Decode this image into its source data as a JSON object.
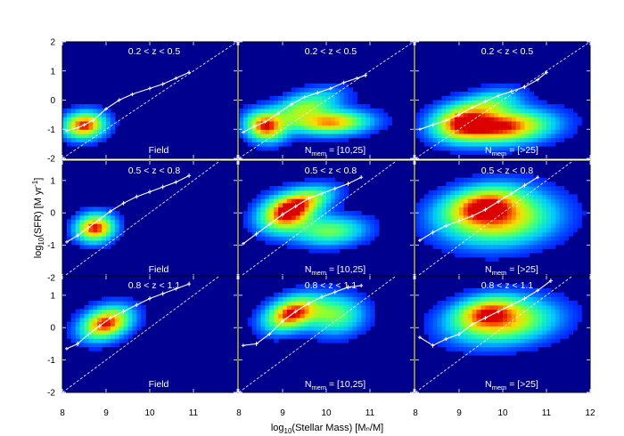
{
  "figure": {
    "xlabel": "log₁₀(Stellar Mass) [Mₙ/M]",
    "ylabel": "log₁₀(SFR) [M yr⁻¹]",
    "xlabel_parts": {
      "pre": "log",
      "sub": "10",
      "post": "(Stellar Mass) [Mₙ/M]"
    },
    "ylabel_parts": {
      "pre": "log",
      "sub": "10",
      "post": "(SFR) [M yr",
      "sup": "-1",
      "end": "]"
    },
    "bottom_ticks": [
      "8",
      "9",
      "10",
      "11",
      "8",
      "9",
      "10",
      "11",
      "8",
      "9",
      "10",
      "11",
      "12"
    ],
    "row_y_ticks": [
      [
        "2",
        "1",
        "0",
        "-1",
        "-2"
      ],
      [
        "1",
        "0",
        "-1",
        "-2"
      ],
      [
        "1",
        "0",
        "-1",
        "-2"
      ]
    ]
  },
  "chart_data": [
    {
      "type": "heatmap",
      "row": 0,
      "col": 0,
      "title": "0.2 < z < 0.5",
      "label": "Field",
      "xlim": [
        8,
        12
      ],
      "ylim": [
        -2,
        2
      ],
      "blobs": [
        {
          "x": 8.5,
          "y": -0.85,
          "sx": 0.33,
          "sy": 0.3,
          "rot": 0.55,
          "w": 1.0
        }
      ],
      "median": {
        "x": [
          8.1,
          8.35,
          8.5,
          8.7,
          9.0,
          9.3,
          9.6,
          10.0,
          10.3,
          10.6,
          10.9
        ],
        "y": [
          -1.05,
          -0.95,
          -0.85,
          -0.7,
          -0.3,
          0.0,
          0.2,
          0.4,
          0.55,
          0.75,
          0.95
        ]
      }
    },
    {
      "type": "heatmap",
      "row": 0,
      "col": 1,
      "title": "0.2 < z < 0.5",
      "label": "N",
      "label_sub": "mem",
      "label_post": " = [10,25]",
      "xlim": [
        8,
        12
      ],
      "ylim": [
        -2,
        2
      ],
      "blobs": [
        {
          "x": 8.6,
          "y": -0.9,
          "sx": 0.3,
          "sy": 0.35,
          "rot": 0.4,
          "w": 0.9
        },
        {
          "x": 10.1,
          "y": -0.75,
          "sx": 0.6,
          "sy": 0.28,
          "rot": 0.05,
          "w": 0.85
        },
        {
          "x": 9.5,
          "y": -0.2,
          "sx": 0.6,
          "sy": 0.3,
          "rot": 0.5,
          "w": 0.55
        }
      ],
      "median": {
        "x": [
          8.1,
          8.35,
          8.6,
          8.9,
          9.2,
          9.5,
          9.8,
          10.1,
          10.4,
          10.7,
          10.9
        ],
        "y": [
          -1.1,
          -0.9,
          -0.75,
          -0.45,
          -0.15,
          0.1,
          0.25,
          0.4,
          0.6,
          0.75,
          0.85
        ]
      }
    },
    {
      "type": "heatmap",
      "row": 0,
      "col": 2,
      "title": "0.2 < z < 0.5",
      "label": "N",
      "label_sub": "mem",
      "label_post": " = [>25]",
      "xlim": [
        8,
        12
      ],
      "ylim": [
        -2,
        2
      ],
      "blobs": [
        {
          "x": 10.0,
          "y": -0.9,
          "sx": 0.75,
          "sy": 0.38,
          "rot": 0.1,
          "w": 1.0
        },
        {
          "x": 9.0,
          "y": -0.75,
          "sx": 0.45,
          "sy": 0.4,
          "rot": 0.4,
          "w": 0.7
        },
        {
          "x": 9.7,
          "y": -0.1,
          "sx": 0.5,
          "sy": 0.3,
          "rot": 0.4,
          "w": 0.45
        }
      ],
      "median": {
        "x": [
          8.1,
          8.4,
          8.7,
          9.0,
          9.3,
          9.6,
          9.9,
          10.2,
          10.5,
          10.8,
          11.0
        ],
        "y": [
          -1.0,
          -0.85,
          -0.7,
          -0.5,
          -0.25,
          -0.05,
          0.15,
          0.3,
          0.45,
          0.7,
          0.95
        ]
      }
    },
    {
      "type": "heatmap",
      "row": 1,
      "col": 0,
      "title": "0.5 < z < 0.8",
      "label": "Field",
      "xlim": [
        8,
        12
      ],
      "ylim": [
        -2,
        1.6
      ],
      "blobs": [
        {
          "x": 8.75,
          "y": -0.45,
          "sx": 0.3,
          "sy": 0.28,
          "rot": 0.6,
          "w": 1.0
        }
      ],
      "median": {
        "x": [
          8.1,
          8.35,
          8.6,
          8.85,
          9.1,
          9.4,
          9.7,
          10.0,
          10.3,
          10.6,
          10.9
        ],
        "y": [
          -0.9,
          -0.7,
          -0.45,
          -0.2,
          0.05,
          0.3,
          0.5,
          0.65,
          0.8,
          0.95,
          1.15
        ]
      }
    },
    {
      "type": "heatmap",
      "row": 1,
      "col": 1,
      "title": "0.5 < z < 0.8",
      "label": "N",
      "label_sub": "mem",
      "label_post": " = [10,25]",
      "xlim": [
        8,
        12
      ],
      "ylim": [
        -2,
        1.6
      ],
      "blobs": [
        {
          "x": 9.1,
          "y": 0.0,
          "sx": 0.45,
          "sy": 0.35,
          "rot": 0.55,
          "w": 1.0
        },
        {
          "x": 10.1,
          "y": -0.55,
          "sx": 0.55,
          "sy": 0.3,
          "rot": 0.1,
          "w": 0.55
        },
        {
          "x": 9.6,
          "y": 0.45,
          "sx": 0.45,
          "sy": 0.25,
          "rot": 0.4,
          "w": 0.5
        }
      ],
      "median": {
        "x": [
          8.1,
          8.4,
          8.7,
          9.0,
          9.3,
          9.6,
          9.9,
          10.2,
          10.5,
          10.8
        ],
        "y": [
          -0.95,
          -0.65,
          -0.35,
          -0.05,
          0.2,
          0.45,
          0.6,
          0.75,
          0.9,
          1.1
        ]
      }
    },
    {
      "type": "heatmap",
      "row": 1,
      "col": 2,
      "title": "0.5 < z < 0.8",
      "label": "N",
      "label_sub": "mem",
      "label_post": " = [>25]",
      "xlim": [
        8,
        12
      ],
      "ylim": [
        -2,
        1.6
      ],
      "blobs": [
        {
          "x": 9.9,
          "y": -0.15,
          "sx": 0.85,
          "sy": 0.55,
          "rot": 0.1,
          "w": 0.85
        },
        {
          "x": 9.5,
          "y": 0.3,
          "sx": 0.6,
          "sy": 0.35,
          "rot": 0.3,
          "w": 0.55
        }
      ],
      "median": {
        "x": [
          8.1,
          8.4,
          8.7,
          9.0,
          9.3,
          9.6,
          9.9,
          10.2,
          10.5,
          10.8
        ],
        "y": [
          -0.85,
          -0.6,
          -0.4,
          -0.25,
          -0.1,
          0.1,
          0.35,
          0.6,
          0.85,
          1.1
        ]
      }
    },
    {
      "type": "heatmap",
      "row": 2,
      "col": 0,
      "title": "0.8 < z < 1.1",
      "label": "Field",
      "xlim": [
        8,
        12
      ],
      "ylim": [
        -2,
        1.6
      ],
      "blobs": [
        {
          "x": 9.0,
          "y": 0.15,
          "sx": 0.42,
          "sy": 0.3,
          "rot": 0.6,
          "w": 1.0
        }
      ],
      "median": {
        "x": [
          8.1,
          8.35,
          8.6,
          8.85,
          9.1,
          9.4,
          9.7,
          10.0,
          10.3,
          10.6,
          10.9
        ],
        "y": [
          -0.65,
          -0.5,
          -0.2,
          0.05,
          0.3,
          0.5,
          0.7,
          0.9,
          1.05,
          1.2,
          1.35
        ]
      }
    },
    {
      "type": "heatmap",
      "row": 2,
      "col": 1,
      "title": "0.8 < z < 1.1",
      "label": "N",
      "label_sub": "mem",
      "label_post": " = [10,25]",
      "xlim": [
        8,
        12
      ],
      "ylim": [
        -2,
        1.6
      ],
      "blobs": [
        {
          "x": 9.2,
          "y": 0.45,
          "sx": 0.45,
          "sy": 0.3,
          "rot": 0.6,
          "w": 1.0
        },
        {
          "x": 10.2,
          "y": 0.4,
          "sx": 0.45,
          "sy": 0.4,
          "rot": 0.2,
          "w": 0.55
        }
      ],
      "median": {
        "x": [
          8.1,
          8.4,
          8.7,
          9.0,
          9.3,
          9.6,
          9.9,
          10.2,
          10.5,
          10.8
        ],
        "y": [
          -0.55,
          -0.5,
          -0.2,
          0.2,
          0.5,
          0.75,
          0.95,
          1.1,
          1.25,
          1.3
        ]
      }
    },
    {
      "type": "heatmap",
      "row": 2,
      "col": 2,
      "title": "0.8 < z < 1.1",
      "label": "N",
      "label_sub": "mem",
      "label_post": " = [>25]",
      "xlim": [
        8,
        12
      ],
      "ylim": [
        -2,
        1.6
      ],
      "blobs": [
        {
          "x": 10.0,
          "y": 0.2,
          "sx": 0.8,
          "sy": 0.45,
          "rot": 0.15,
          "w": 0.8
        },
        {
          "x": 9.6,
          "y": 0.55,
          "sx": 0.5,
          "sy": 0.3,
          "rot": 0.3,
          "w": 0.5
        }
      ],
      "median": {
        "x": [
          8.1,
          8.4,
          8.7,
          9.0,
          9.3,
          9.6,
          9.9,
          10.2,
          10.5,
          10.8,
          11.1
        ],
        "y": [
          -0.3,
          -0.55,
          -0.35,
          -0.2,
          0.1,
          0.3,
          0.5,
          0.7,
          0.9,
          1.15,
          1.45
        ]
      }
    }
  ]
}
